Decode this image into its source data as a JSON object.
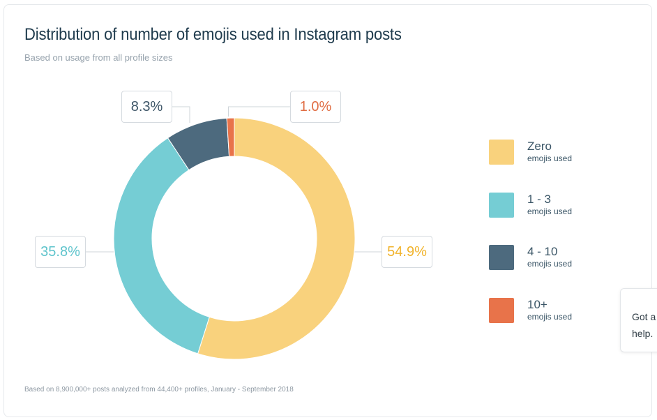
{
  "title": "Distribution of number of emojis used in Instagram posts",
  "subtitle": "Based on usage from all profile sizes",
  "footnote": "Based on 8,900,000+ posts analyzed from 44,400+ profiles, January - September 2018",
  "chart_data": {
    "type": "pie",
    "variant": "donut",
    "unit": "%",
    "slices": [
      {
        "label": "Zero",
        "sublabel": "emojis used",
        "value": 54.9,
        "display": "54.9%",
        "color": "#f9d27d",
        "label_color": "#f1b32b"
      },
      {
        "label": "1 - 3",
        "sublabel": "emojis used",
        "value": 35.8,
        "display": "35.8%",
        "color": "#75cdd4",
        "label_color": "#5fc4cc"
      },
      {
        "label": "4 - 10",
        "sublabel": "emojis used",
        "value": 8.3,
        "display": "8.3%",
        "color": "#4d6a7e",
        "label_color": "#3d5567"
      },
      {
        "label": "10+",
        "sublabel": "emojis used",
        "value": 1.0,
        "display": "1.0%",
        "color": "#e8734a",
        "label_color": "#e06d43"
      }
    ],
    "legend_position": "right"
  },
  "chat_widget": {
    "line1": "Got a",
    "line2": "help."
  }
}
